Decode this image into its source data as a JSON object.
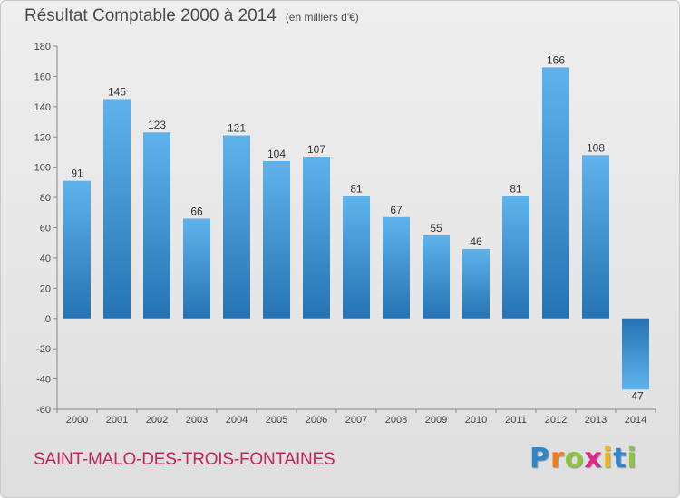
{
  "header": {
    "title": "Résultat Comptable 2000 à 2014",
    "unit": "(en milliers d'€)"
  },
  "footer": {
    "commune": "SAINT-MALO-DES-TROIS-FONTAINES",
    "logo_letters": [
      "P",
      "r",
      "o",
      "x",
      "i",
      "t",
      "i"
    ],
    "logo_colors": [
      "#2f86c8",
      "#f07b1a",
      "#8cc63e",
      "#e0248a",
      "#f0b81a",
      "#2f86c8",
      "#8cc63e"
    ]
  },
  "colors": {
    "bar_light": "#5fb3ec",
    "bar_dark": "#2573b3",
    "title": "#4a4a4a",
    "commune": "#c4265a"
  },
  "chart_data": {
    "type": "bar",
    "title": "Résultat Comptable 2000 à 2014",
    "ylabel": "en milliers d'€",
    "xlabel": "",
    "categories": [
      "2000",
      "2001",
      "2002",
      "2003",
      "2004",
      "2005",
      "2006",
      "2007",
      "2008",
      "2009",
      "2010",
      "2011",
      "2012",
      "2013",
      "2014"
    ],
    "values": [
      91,
      145,
      123,
      66,
      121,
      104,
      107,
      81,
      67,
      55,
      46,
      81,
      166,
      108,
      -47
    ],
    "ylim": [
      -60,
      180
    ],
    "yticks": [
      -60,
      -40,
      -20,
      0,
      20,
      40,
      60,
      80,
      100,
      120,
      140,
      160,
      180
    ],
    "grid": false
  }
}
